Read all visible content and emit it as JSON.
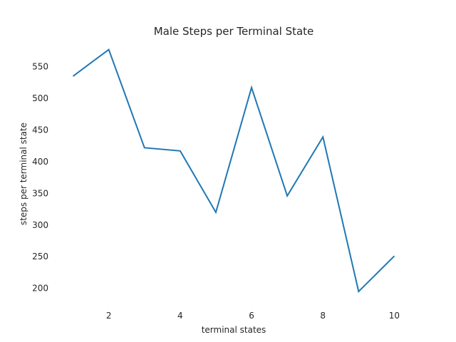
{
  "chart_data": {
    "type": "line",
    "title": "Male Steps per Terminal State",
    "xlabel": "terminal states",
    "ylabel": "steps per terminal state",
    "x": [
      1,
      2,
      3,
      4,
      5,
      6,
      7,
      8,
      9,
      10
    ],
    "series": [
      {
        "values": [
          535,
          577,
          422,
          417,
          320,
          517,
          346,
          439,
          195,
          251
        ],
        "color": "#1f77b4"
      }
    ],
    "xlim": [
      0.55,
      10.45
    ],
    "ylim": [
      176,
      590
    ],
    "xticks": [
      2,
      4,
      6,
      8,
      10
    ],
    "yticks": [
      200,
      250,
      300,
      350,
      400,
      450,
      500,
      550
    ],
    "xtick_labels": [
      "2",
      "4",
      "6",
      "8",
      "10"
    ],
    "ytick_labels": [
      "200",
      "250",
      "300",
      "350",
      "400",
      "450",
      "500",
      "550"
    ],
    "grid": false,
    "legend": "none",
    "background": "#ffffff",
    "text_color": "#262626"
  }
}
